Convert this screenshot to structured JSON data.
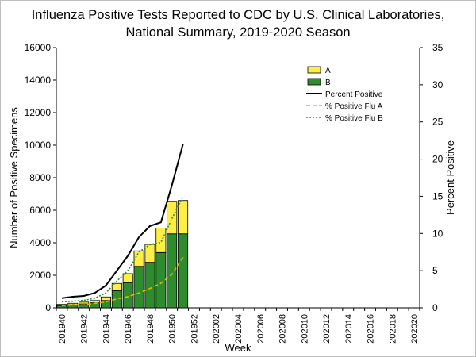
{
  "title": {
    "line1": "Influenza Positive Tests Reported to CDC by U.S. Clinical Laboratories,",
    "line2": "National Summary, 2019-2020 Season"
  },
  "chart_data": {
    "type": "bar",
    "stacked": true,
    "xlabel": "Week",
    "ylabel": "Number of Positive Specimens",
    "y2label": "Percent Positive",
    "ylim": [
      0,
      16000
    ],
    "y2lim": [
      0,
      35
    ],
    "yticks": [
      0,
      2000,
      4000,
      6000,
      8000,
      10000,
      12000,
      14000,
      16000
    ],
    "y2ticks": [
      0,
      5,
      10,
      15,
      20,
      25,
      30,
      35
    ],
    "xtick_labels": [
      "201940",
      "201942",
      "201944",
      "201946",
      "201948",
      "201950",
      "201952",
      "202002",
      "202004",
      "202006",
      "202008",
      "202010",
      "202012",
      "202014",
      "202016",
      "202018",
      "202020"
    ],
    "weeks": [
      "201940",
      "201941",
      "201942",
      "201943",
      "201944",
      "201945",
      "201946",
      "201947",
      "201948",
      "201949",
      "201950",
      "201951"
    ],
    "total_weeks_on_axis": 33,
    "series": [
      {
        "name": "B",
        "kind": "bar",
        "color": "#2e8b2e",
        "values": [
          140,
          190,
          240,
          310,
          450,
          1050,
          1550,
          2550,
          2800,
          3400,
          4550,
          4550
        ]
      },
      {
        "name": "A",
        "kind": "bar",
        "color": "#ffee44",
        "values": [
          70,
          90,
          110,
          140,
          220,
          450,
          550,
          950,
          1100,
          1500,
          2000,
          2050
        ]
      },
      {
        "name": "Percent Positive",
        "kind": "line",
        "axis": "right",
        "color": "#000000",
        "values": [
          1.3,
          1.5,
          1.6,
          2.0,
          3.0,
          5.0,
          7.0,
          9.5,
          11.0,
          11.5,
          16.5,
          22.0
        ]
      },
      {
        "name": "% Positive Flu A",
        "kind": "dashed-line",
        "axis": "right",
        "color": "#e6b800",
        "values": [
          0.3,
          0.4,
          0.4,
          0.6,
          0.8,
          1.2,
          1.5,
          2.0,
          2.6,
          3.3,
          4.5,
          6.8
        ]
      },
      {
        "name": "% Positive Flu B",
        "kind": "dotted-line",
        "axis": "right",
        "color": "#2e8b2e",
        "values": [
          0.8,
          0.9,
          1.0,
          1.3,
          2.0,
          3.6,
          5.0,
          7.5,
          8.5,
          8.8,
          12.0,
          15.0
        ]
      }
    ],
    "legend": {
      "position": "top-right",
      "entries": [
        {
          "label": "A",
          "kind": "bar",
          "color": "#ffee44"
        },
        {
          "label": "B",
          "kind": "bar",
          "color": "#2e8b2e"
        },
        {
          "label": "Percent Positive",
          "kind": "line",
          "color": "#000000"
        },
        {
          "label": "% Positive Flu A",
          "kind": "dashed-line",
          "color": "#e6b800"
        },
        {
          "label": "% Positive Flu B",
          "kind": "dotted-line",
          "color": "#2e8b2e"
        }
      ]
    },
    "grid": false
  }
}
